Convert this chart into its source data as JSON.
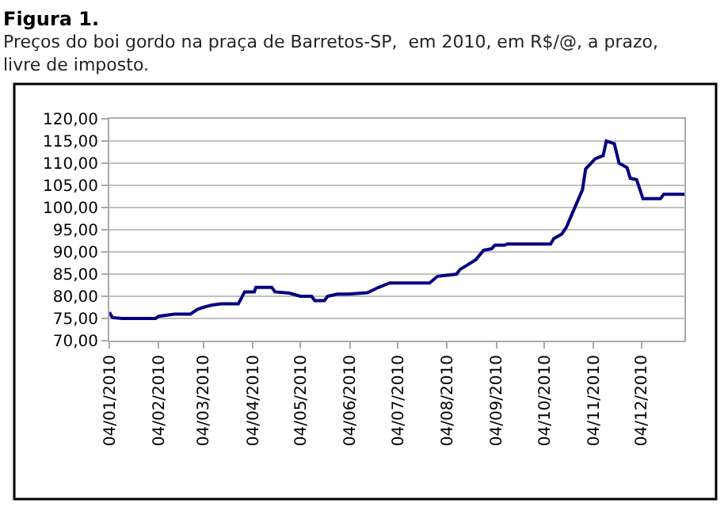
{
  "chart_data": {
    "type": "line",
    "title": "Figura 1.",
    "subtitle": "Preços do boi gordo na praça de Barretos-SP,  em 2010, em R$/@, a prazo,\nlivre de imposto.",
    "x": [
      "2010-01-04",
      "2010-01-06",
      "2010-01-12",
      "2010-02-02",
      "2010-02-04",
      "2010-02-14",
      "2010-02-24",
      "2010-02-28",
      "2010-03-04",
      "2010-03-09",
      "2010-03-15",
      "2010-03-26",
      "2010-03-30",
      "2010-04-05",
      "2010-04-06",
      "2010-04-16",
      "2010-04-18",
      "2010-04-27",
      "2010-05-04",
      "2010-05-11",
      "2010-05-13",
      "2010-05-19",
      "2010-05-21",
      "2010-05-27",
      "2010-06-03",
      "2010-06-15",
      "2010-06-22",
      "2010-06-29",
      "2010-07-24",
      "2010-07-29",
      "2010-08-10",
      "2010-08-12",
      "2010-08-22",
      "2010-08-27",
      "2010-09-01",
      "2010-09-03",
      "2010-09-09",
      "2010-09-11",
      "2010-10-08",
      "2010-10-10",
      "2010-10-15",
      "2010-10-18",
      "2010-10-22",
      "2010-10-28",
      "2010-10-30",
      "2010-11-05",
      "2010-11-10",
      "2010-11-12",
      "2010-11-17",
      "2010-11-20",
      "2010-11-25",
      "2010-11-27",
      "2010-12-01",
      "2010-12-05",
      "2010-12-16",
      "2010-12-18",
      "2010-12-31"
    ],
    "series": [
      {
        "color": "#000080",
        "values": [
          76.4,
          75.2,
          75.0,
          75.0,
          75.5,
          76.0,
          76.0,
          77.0,
          77.5,
          78.0,
          78.3,
          78.3,
          81.0,
          81.0,
          82.0,
          82.0,
          81.0,
          80.7,
          80.0,
          80.0,
          79.0,
          79.0,
          80.0,
          80.5,
          80.5,
          80.8,
          82.0,
          83.0,
          83.0,
          84.5,
          85.0,
          86.0,
          88.2,
          90.4,
          90.7,
          91.5,
          91.5,
          91.8,
          91.8,
          93.0,
          94.0,
          95.6,
          99.0,
          104.0,
          108.7,
          111.0,
          111.7,
          115.0,
          114.4,
          110.0,
          109.0,
          106.6,
          106.3,
          102.0,
          102.0,
          103.0,
          103.0
        ]
      }
    ],
    "xlim": [
      "2010-01-04",
      "2010-12-31"
    ],
    "xticks": [
      {
        "value": "2010-01-04",
        "label": "04/01/2010"
      },
      {
        "value": "2010-02-04",
        "label": "04/02/2010"
      },
      {
        "value": "2010-03-04",
        "label": "04/03/2010"
      },
      {
        "value": "2010-04-04",
        "label": "04/04/2010"
      },
      {
        "value": "2010-05-04",
        "label": "04/05/2010"
      },
      {
        "value": "2010-06-04",
        "label": "04/06/2010"
      },
      {
        "value": "2010-07-04",
        "label": "04/07/2010"
      },
      {
        "value": "2010-08-04",
        "label": "04/08/2010"
      },
      {
        "value": "2010-09-04",
        "label": "04/09/2010"
      },
      {
        "value": "2010-10-04",
        "label": "04/10/2010"
      },
      {
        "value": "2010-11-04",
        "label": "04/11/2010"
      },
      {
        "value": "2010-12-04",
        "label": "04/12/2010"
      }
    ],
    "ylim": [
      70,
      120
    ],
    "yticks": [
      {
        "value": 70,
        "label": "70,00"
      },
      {
        "value": 75,
        "label": "75,00"
      },
      {
        "value": 80,
        "label": "80,00"
      },
      {
        "value": 85,
        "label": "85,00"
      },
      {
        "value": 90,
        "label": "90,00"
      },
      {
        "value": 95,
        "label": "95,00"
      },
      {
        "value": 100,
        "label": "100,00"
      },
      {
        "value": 105,
        "label": "105,00"
      },
      {
        "value": 110,
        "label": "110,00"
      },
      {
        "value": 115,
        "label": "115,00"
      },
      {
        "value": 120,
        "label": "120,00"
      }
    ],
    "grid": "y",
    "marker": "none",
    "line_style": "solid"
  }
}
